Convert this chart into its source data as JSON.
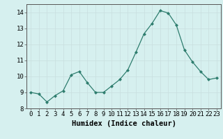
{
  "x": [
    0,
    1,
    2,
    3,
    4,
    5,
    6,
    7,
    8,
    9,
    10,
    11,
    12,
    13,
    14,
    15,
    16,
    17,
    18,
    19,
    20,
    21,
    22,
    23
  ],
  "y": [
    9.0,
    8.9,
    8.4,
    8.8,
    9.1,
    10.1,
    10.3,
    9.6,
    9.0,
    9.0,
    9.4,
    9.8,
    10.4,
    11.5,
    12.65,
    13.3,
    14.1,
    13.95,
    13.2,
    11.65,
    10.9,
    10.3,
    9.8,
    9.9
  ],
  "xlabel": "Humidex (Indice chaleur)",
  "ylim": [
    8,
    14.5
  ],
  "xlim": [
    -0.5,
    23.5
  ],
  "yticks": [
    8,
    9,
    10,
    11,
    12,
    13,
    14
  ],
  "xticks": [
    0,
    1,
    2,
    3,
    4,
    5,
    6,
    7,
    8,
    9,
    10,
    11,
    12,
    13,
    14,
    15,
    16,
    17,
    18,
    19,
    20,
    21,
    22,
    23
  ],
  "line_color": "#2e7d6e",
  "marker_color": "#2e7d6e",
  "bg_color": "#d6f0ef",
  "grid_color": "#c8dede",
  "axis_color": "#555555",
  "tick_label_fontsize": 6.5,
  "xlabel_fontsize": 7.5
}
